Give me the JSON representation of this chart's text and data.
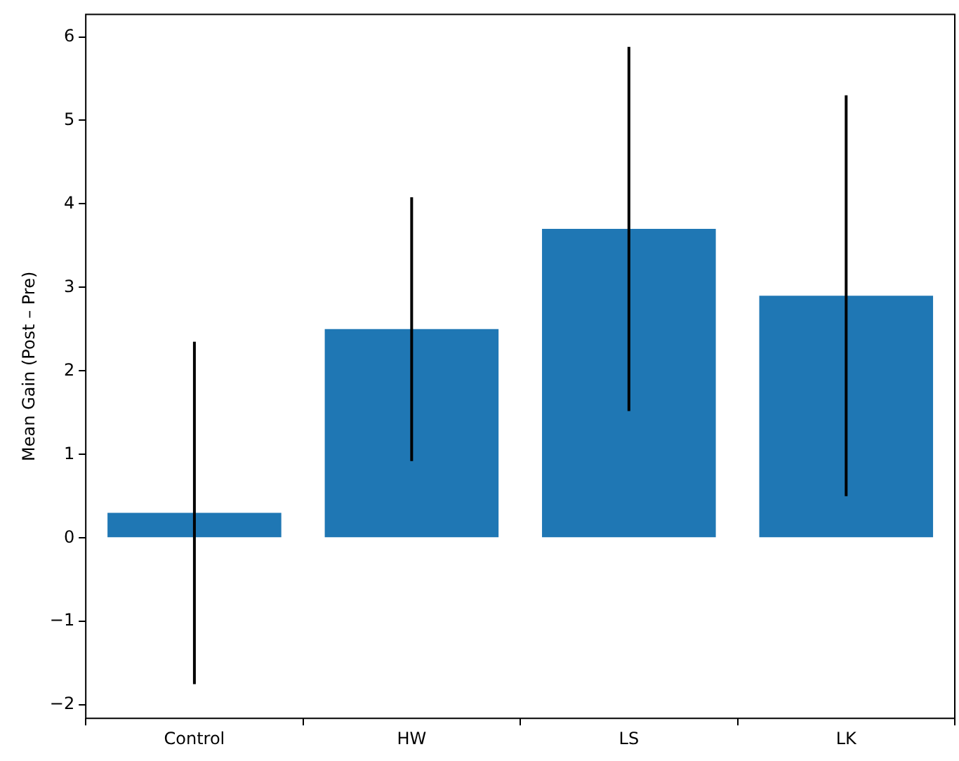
{
  "chart_data": {
    "type": "bar",
    "ylabel": "Mean Gain (Post – Pre)",
    "categories": [
      "Control",
      "HW",
      "LS",
      "LK"
    ],
    "values": [
      0.3,
      2.5,
      3.7,
      2.9
    ],
    "errors": [
      2.05,
      1.58,
      2.18,
      2.4
    ],
    "color": "#1f77b4",
    "ylim": [
      -2.16,
      6.27
    ],
    "yticks": [
      {
        "value": -2,
        "label": "−2"
      },
      {
        "value": -1,
        "label": "−1"
      },
      0,
      1,
      2,
      3,
      4,
      5,
      6
    ],
    "grid": false,
    "legend": false
  }
}
